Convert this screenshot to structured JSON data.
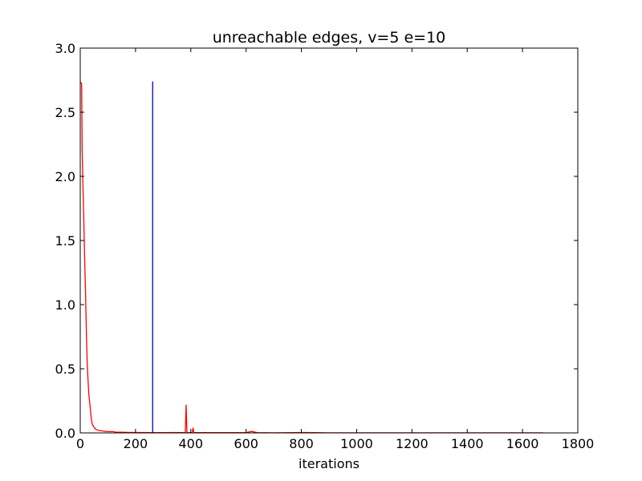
{
  "chart_data": {
    "type": "line",
    "title": "unreachable edges, v=5 e=10",
    "xlabel": "iterations",
    "ylabel": "",
    "xlim": [
      0,
      1800
    ],
    "ylim": [
      0,
      3.0
    ],
    "x_ticks": [
      0,
      200,
      400,
      600,
      800,
      1000,
      1200,
      1400,
      1600,
      1800
    ],
    "y_ticks": [
      0.0,
      0.5,
      1.0,
      1.5,
      2.0,
      2.5,
      3.0
    ],
    "y_tick_labels": [
      "0.0",
      "0.5",
      "1.0",
      "1.5",
      "2.0",
      "2.5",
      "3.0"
    ],
    "grid": false,
    "legend": "none",
    "series": [
      {
        "color": "#ff0000",
        "points": [
          [
            0,
            2.73
          ],
          [
            3,
            2.73
          ],
          [
            5,
            2.72
          ],
          [
            7,
            2.2
          ],
          [
            10,
            1.9
          ],
          [
            13,
            1.65
          ],
          [
            16,
            1.35
          ],
          [
            19,
            1.1
          ],
          [
            22,
            0.8
          ],
          [
            25,
            0.55
          ],
          [
            28,
            0.42
          ],
          [
            31,
            0.3
          ],
          [
            35,
            0.22
          ],
          [
            39,
            0.13
          ],
          [
            43,
            0.07
          ],
          [
            48,
            0.05
          ],
          [
            55,
            0.03
          ],
          [
            65,
            0.02
          ],
          [
            80,
            0.015
          ],
          [
            100,
            0.01
          ],
          [
            120,
            0.01
          ],
          [
            130,
            0.005
          ],
          [
            150,
            0.005
          ],
          [
            170,
            0.004
          ],
          [
            200,
            0.003
          ],
          [
            230,
            0.003
          ],
          [
            260,
            0.002
          ],
          [
            300,
            0.002
          ],
          [
            340,
            0.003
          ],
          [
            380,
            0.002
          ],
          [
            383,
            0.22
          ],
          [
            386,
            0.002
          ],
          [
            405,
            0.002
          ],
          [
            408,
            0.04
          ],
          [
            411,
            0.002
          ],
          [
            450,
            0.002
          ],
          [
            500,
            0.002
          ],
          [
            600,
            0.002
          ],
          [
            620,
            0.012
          ],
          [
            640,
            0.002
          ],
          [
            700,
            0.001
          ],
          [
            800,
            0.003
          ],
          [
            900,
            0.001
          ],
          [
            1000,
            0.001
          ],
          [
            1100,
            0.001
          ],
          [
            1200,
            0.001
          ],
          [
            1300,
            0.001
          ],
          [
            1400,
            0.001
          ],
          [
            1500,
            0.001
          ],
          [
            1600,
            0.001
          ],
          [
            1675,
            0.001
          ]
        ]
      },
      {
        "color": "#0000bf",
        "points": [
          [
            262,
            0
          ],
          [
            262,
            2.74
          ]
        ]
      }
    ]
  }
}
